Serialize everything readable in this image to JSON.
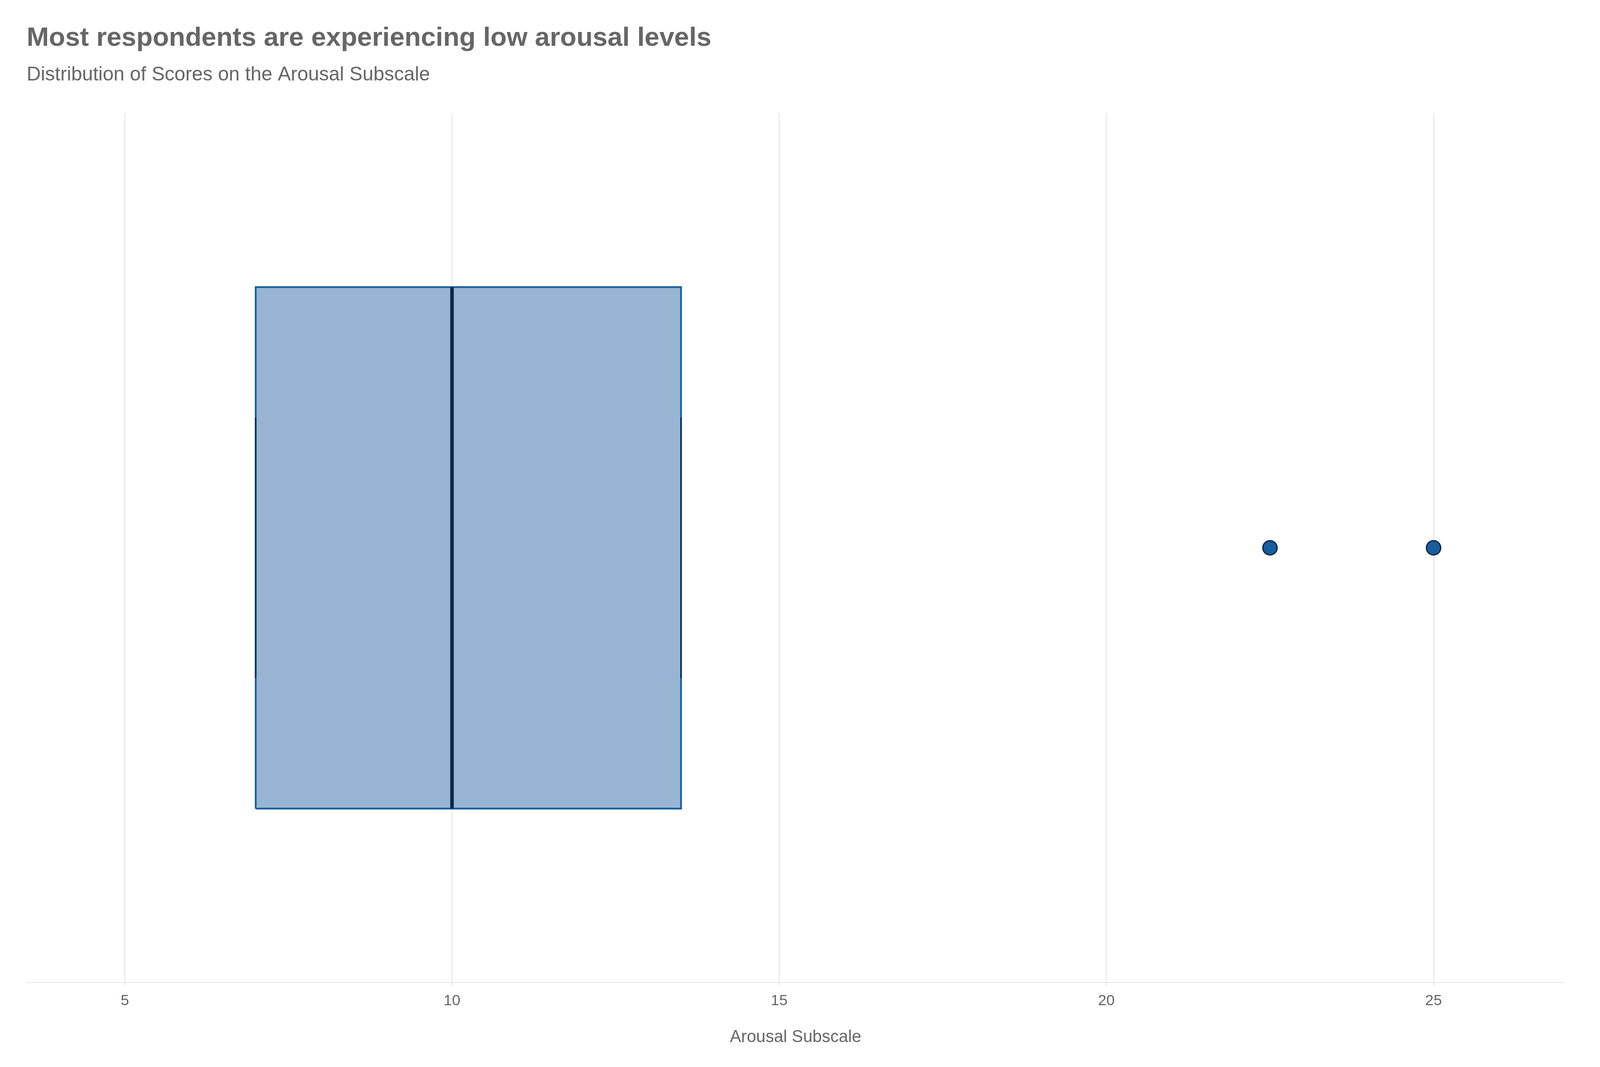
{
  "chart_data": {
    "type": "box",
    "title": "Most respondents are experiencing low arousal levels",
    "subtitle": "Distribution of Scores on the Arousal Subscale",
    "xlabel": "Arousal Subscale",
    "q1": 7.0,
    "median": 10.0,
    "q3": 13.5,
    "whisker_low": 7.0,
    "whisker_high": 13.5,
    "outliers": [
      22.5,
      25.0
    ],
    "color": "#1A5D9E",
    "orientation": "horizontal",
    "xlim": [
      3.5,
      27
    ],
    "xticks": [
      5,
      10,
      15,
      20,
      25
    ],
    "grid": true
  }
}
